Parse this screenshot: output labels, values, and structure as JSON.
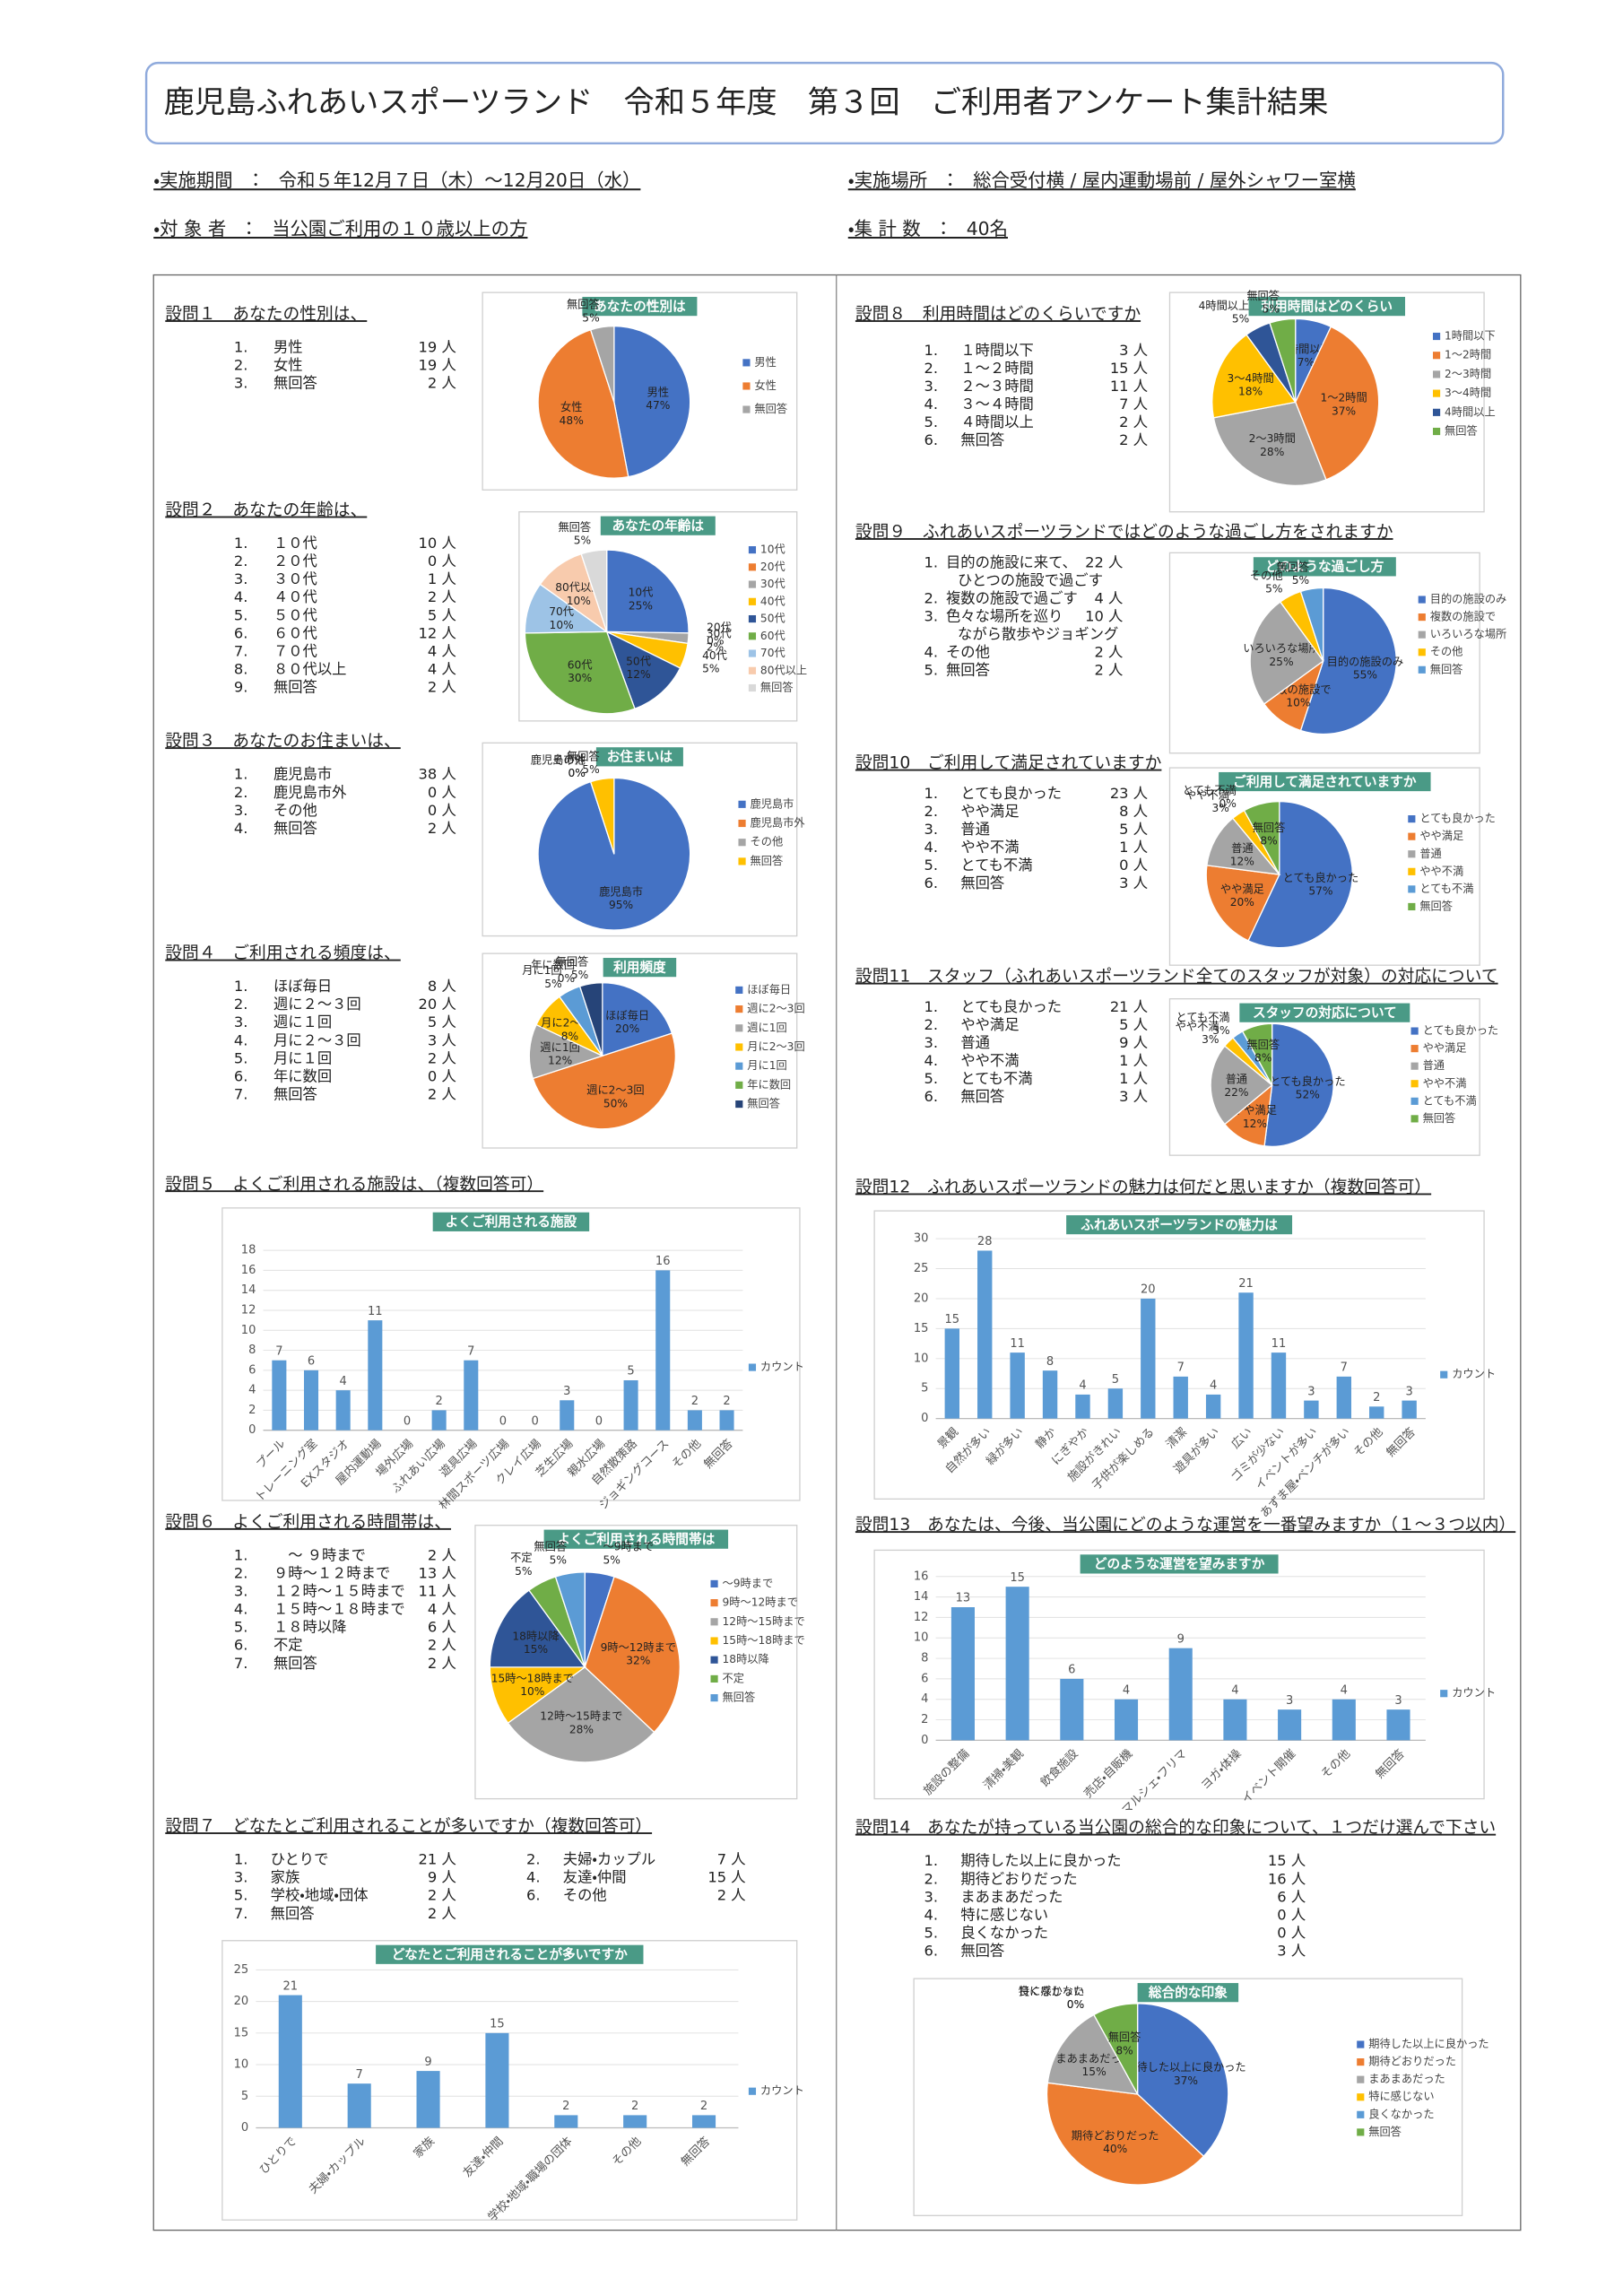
{
  "header": {
    "title": "鹿児島ふれあいスポーツランド　令和５年度　第３回　ご利用者アンケート集計結果"
  },
  "info": [
    "・実施期間　：　令和５年12月７日（木）～12月20日（水）",
    "・実施場所　：　総合受付横 / 屋内運動場前 / 屋外シャワー室横",
    "・対 象 者　：　当公園ご利用の１０歳以上の方",
    "・集 計 数　：　40名"
  ],
  "questions": [
    {
      "title": "設問１　あなたの性別は、",
      "items": [
        {
          "no": "1.",
          "label": "男性",
          "count": "19 人"
        },
        {
          "no": "2.",
          "label": "女性",
          "count": "19 人"
        },
        {
          "no": "3.",
          "label": "無回答",
          "count": "2 人"
        }
      ],
      "chart": {
        "type": "pie",
        "title": "あなたの性別は",
        "categories": [
          "男性",
          "女性",
          "無回答"
        ],
        "values": [
          47,
          48,
          5
        ],
        "value_labels": [
          "47%",
          "48%",
          "5%"
        ],
        "colors": [
          "#4472c4",
          "#ed7d31",
          "#a5a5a5"
        ]
      }
    },
    {
      "title": "設問２　あなたの年齢は、",
      "items": [
        {
          "no": "1.",
          "label": "１０代",
          "count": "10 人"
        },
        {
          "no": "2.",
          "label": "２０代",
          "count": "0 人"
        },
        {
          "no": "3.",
          "label": "３０代",
          "count": "1 人"
        },
        {
          "no": "4.",
          "label": "４０代",
          "count": "2 人"
        },
        {
          "no": "5.",
          "label": "５０代",
          "count": "5 人"
        },
        {
          "no": "6.",
          "label": "６０代",
          "count": "12 人"
        },
        {
          "no": "7.",
          "label": "７０代",
          "count": "4 人"
        },
        {
          "no": "8.",
          "label": "８０代以上",
          "count": "4 人"
        },
        {
          "no": "9.",
          "label": "無回答",
          "count": "2 人"
        }
      ],
      "chart": {
        "type": "pie",
        "title": "あなたの年齢は",
        "categories": [
          "10代",
          "20代",
          "30代",
          "40代",
          "50代",
          "60代",
          "70代",
          "80代以上",
          "無回答"
        ],
        "values": [
          25,
          0,
          2,
          5,
          12,
          30,
          10,
          10,
          5
        ],
        "value_labels": [
          "25%",
          "0%",
          "2%",
          "5%",
          "12%",
          "30%",
          "10%",
          "10%",
          "5%"
        ],
        "colors": [
          "#4472c4",
          "#ed7d31",
          "#a5a5a5",
          "#ffc000",
          "#2f5597",
          "#70ad47",
          "#9dc3e6",
          "#f8cbad",
          "#d9d9d9"
        ]
      }
    },
    {
      "title": "設問３　あなたのお住まいは、",
      "items": [
        {
          "no": "1.",
          "label": "鹿児島市",
          "count": "38 人"
        },
        {
          "no": "2.",
          "label": "鹿児島市外",
          "count": "0 人"
        },
        {
          "no": "3.",
          "label": "その他",
          "count": "0 人"
        },
        {
          "no": "4.",
          "label": "無回答",
          "count": "2 人"
        }
      ],
      "chart": {
        "type": "pie",
        "title": "お住まいは",
        "categories": [
          "鹿児島市",
          "鹿児島市外",
          "その他",
          "無回答"
        ],
        "values": [
          95,
          0,
          0,
          5
        ],
        "value_labels": [
          "95%",
          "0%",
          "0%",
          "5%"
        ],
        "colors": [
          "#4472c4",
          "#ed7d31",
          "#a5a5a5",
          "#ffc000"
        ]
      }
    },
    {
      "title": "設問４　ご利用される頻度は、",
      "items": [
        {
          "no": "1.",
          "label": "ほぼ毎日",
          "count": "8 人"
        },
        {
          "no": "2.",
          "label": "週に２～３回",
          "count": "20 人"
        },
        {
          "no": "3.",
          "label": "週に１回",
          "count": "5 人"
        },
        {
          "no": "4.",
          "label": "月に２～３回",
          "count": "3 人"
        },
        {
          "no": "5.",
          "label": "月に１回",
          "count": "2 人"
        },
        {
          "no": "6.",
          "label": "年に数回",
          "count": "0 人"
        },
        {
          "no": "7.",
          "label": "無回答",
          "count": "2 人"
        }
      ],
      "chart": {
        "type": "pie",
        "title": "利用頻度",
        "categories": [
          "ほぼ毎日",
          "週に2～3回",
          "週に1回",
          "月に2～3回",
          "月に1回",
          "年に数回",
          "無回答"
        ],
        "values": [
          20,
          50,
          12,
          8,
          5,
          0,
          5
        ],
        "value_labels": [
          "20%",
          "50%",
          "12%",
          "8%",
          "5%",
          "0%",
          "5%"
        ],
        "colors": [
          "#4472c4",
          "#ed7d31",
          "#a5a5a5",
          "#ffc000",
          "#5b9bd5",
          "#70ad47",
          "#264478"
        ]
      }
    },
    {
      "title": "設問５　よくご利用される施設は、（複数回答可）",
      "items": [],
      "chart": {
        "type": "bar",
        "title": "よくご利用される施設",
        "categories": [
          "プール",
          "トレーニング室",
          "EXスタジオ",
          "屋内運動場",
          "場外広場",
          "ふれあい広場",
          "遊具広場",
          "林間スポーツ広場",
          "クレイ広場",
          "芝生広場",
          "親水広場",
          "自然散策路",
          "ジョギングコース",
          "その他",
          "無回答"
        ],
        "values": [
          7,
          6,
          4,
          11,
          0,
          2,
          7,
          0,
          0,
          3,
          0,
          5,
          16,
          2,
          2
        ],
        "color": "#5b9bd5",
        "legend": "カウント",
        "ylim": [
          0,
          18
        ],
        "yticks": [
          0,
          2,
          4,
          6,
          8,
          10,
          12,
          14,
          16,
          18
        ]
      }
    },
    {
      "title": "設問６　よくご利用される時間帯は、",
      "items": [
        {
          "no": "1.",
          "label": "　～ ９時まで",
          "count": "2 人"
        },
        {
          "no": "2.",
          "label": "９時～１２時まで",
          "count": "13 人"
        },
        {
          "no": "3.",
          "label": "１２時～１５時まで",
          "count": "11 人"
        },
        {
          "no": "4.",
          "label": "１５時～１８時まで",
          "count": "4 人"
        },
        {
          "no": "5.",
          "label": "１８時以降",
          "count": "6 人"
        },
        {
          "no": "6.",
          "label": "不定",
          "count": "2 人"
        },
        {
          "no": "7.",
          "label": "無回答",
          "count": "2 人"
        }
      ],
      "chart": {
        "type": "pie",
        "title": "よくご利用される時間帯は",
        "categories": [
          "～9時まで",
          "9時～12時まで",
          "12時～15時まで",
          "15時～18時まで",
          "18時以降",
          "不定",
          "無回答"
        ],
        "values": [
          5,
          32,
          28,
          10,
          15,
          5,
          5
        ],
        "value_labels": [
          "5%",
          "32%",
          "28%",
          "10%",
          "15%",
          "5%",
          "5%"
        ],
        "colors": [
          "#4472c4",
          "#ed7d31",
          "#a5a5a5",
          "#ffc000",
          "#2f5597",
          "#70ad47",
          "#5b9bd5"
        ]
      }
    },
    {
      "title": "設問７　どなたとご利用されることが多いですか（複数回答可）",
      "items": [
        {
          "no": "1.",
          "label": "ひとりで",
          "count": "21 人"
        },
        {
          "no": "2.",
          "label": "夫婦・カップル",
          "count": "7 人"
        },
        {
          "no": "3.",
          "label": "家族",
          "count": "9 人"
        },
        {
          "no": "4.",
          "label": "友達・仲間",
          "count": "15 人"
        },
        {
          "no": "5.",
          "label": "学校・地域・団体",
          "count": "2 人"
        },
        {
          "no": "6.",
          "label": "その他",
          "count": "2 人"
        },
        {
          "no": "7.",
          "label": "無回答",
          "count": "2 人"
        }
      ],
      "chart": {
        "type": "bar",
        "title": "どなたとご利用されることが多いですか",
        "categories": [
          "ひとりで",
          "夫婦・カップル",
          "家族",
          "友達・仲間",
          "学校・地域・職場の団体",
          "その他",
          "無回答"
        ],
        "values": [
          21,
          7,
          9,
          15,
          2,
          2,
          2
        ],
        "color": "#5b9bd5",
        "legend": "カウント",
        "ylim": [
          0,
          25
        ],
        "yticks": [
          0,
          5,
          10,
          15,
          20,
          25
        ]
      }
    },
    {
      "title": "設問８　利用時間はどのくらいですか",
      "items": [
        {
          "no": "1.",
          "label": "１時間以下",
          "count": "3 人"
        },
        {
          "no": "2.",
          "label": "１～２時間",
          "count": "15 人"
        },
        {
          "no": "3.",
          "label": "２～３時間",
          "count": "11 人"
        },
        {
          "no": "4.",
          "label": "３～４時間",
          "count": "7 人"
        },
        {
          "no": "5.",
          "label": "４時間以上",
          "count": "2 人"
        },
        {
          "no": "6.",
          "label": "無回答",
          "count": "2 人"
        }
      ],
      "chart": {
        "type": "pie",
        "title": "利用時間はどのくらい",
        "categories": [
          "1時間以下",
          "1～2時間",
          "2～3時間",
          "3～4時間",
          "4時間以上",
          "無回答"
        ],
        "values": [
          7,
          37,
          28,
          18,
          5,
          5
        ],
        "value_labels": [
          "7%",
          "37%",
          "28%",
          "18%",
          "5%",
          "5%"
        ],
        "colors": [
          "#4472c4",
          "#ed7d31",
          "#a5a5a5",
          "#ffc000",
          "#2f5597",
          "#70ad47"
        ]
      }
    },
    {
      "title": "設問９　ふれあいスポーツランドではどのような過ごし方をされますか",
      "items": [
        {
          "no": "1.",
          "label": [
            "目的の施設に来て、",
            "ひとつの施設で過ごす"
          ],
          "count": "22 人"
        },
        {
          "no": "2.",
          "label": [
            "複数の施設で過ごす"
          ],
          "count": "4 人"
        },
        {
          "no": "3.",
          "label": [
            "色々な場所を巡り",
            "ながら散歩やジョギング"
          ],
          "count": "10 人"
        },
        {
          "no": "4.",
          "label": [
            "その他"
          ],
          "count": "2 人"
        },
        {
          "no": "5.",
          "label": [
            "無回答"
          ],
          "count": "2 人"
        }
      ],
      "chart": {
        "type": "pie",
        "title": "どのような過ごし方",
        "categories": [
          "目的の施設のみ",
          "複数の施設で",
          "いろいろな場所",
          "その他",
          "無回答"
        ],
        "values": [
          55,
          10,
          25,
          5,
          5
        ],
        "value_labels": [
          "55%",
          "10%",
          "25%",
          "5%",
          "5%"
        ],
        "colors": [
          "#4472c4",
          "#ed7d31",
          "#a5a5a5",
          "#ffc000",
          "#5b9bd5"
        ]
      }
    },
    {
      "title": "設問10　ご利用して満足されていますか",
      "items": [
        {
          "no": "1.",
          "label": "とても良かった",
          "count": "23 人"
        },
        {
          "no": "2.",
          "label": "やや満足",
          "count": "8 人"
        },
        {
          "no": "3.",
          "label": "普通",
          "count": "5 人"
        },
        {
          "no": "4.",
          "label": "やや不満",
          "count": "1 人"
        },
        {
          "no": "5.",
          "label": "とても不満",
          "count": "0 人"
        },
        {
          "no": "6.",
          "label": "無回答",
          "count": "3 人"
        }
      ],
      "chart": {
        "type": "pie",
        "title": "ご利用して満足されていますか",
        "categories": [
          "とても良かった",
          "やや満足",
          "普通",
          "やや不満",
          "とても不満",
          "無回答"
        ],
        "values": [
          57,
          20,
          12,
          3,
          0,
          8
        ],
        "value_labels": [
          "57%",
          "20%",
          "12%",
          "3%",
          "0%",
          "8%"
        ],
        "colors": [
          "#4472c4",
          "#ed7d31",
          "#a5a5a5",
          "#ffc000",
          "#5b9bd5",
          "#70ad47"
        ]
      }
    },
    {
      "title": "設問11　スタッフ（ふれあいスポーツランド全てのスタッフが対象）の対応について",
      "items": [
        {
          "no": "1.",
          "label": "とても良かった",
          "count": "21 人"
        },
        {
          "no": "2.",
          "label": "やや満足",
          "count": "5 人"
        },
        {
          "no": "3.",
          "label": "普通",
          "count": "9 人"
        },
        {
          "no": "4.",
          "label": "やや不満",
          "count": "1 人"
        },
        {
          "no": "5.",
          "label": "とても不満",
          "count": "1 人"
        },
        {
          "no": "6.",
          "label": "無回答",
          "count": "3 人"
        }
      ],
      "chart": {
        "type": "pie",
        "title": "スタッフの対応について",
        "categories": [
          "とても良かった",
          "やや満足",
          "普通",
          "やや不満",
          "とても不満",
          "無回答"
        ],
        "values": [
          52,
          12,
          22,
          3,
          3,
          8
        ],
        "value_labels": [
          "52%",
          "12%",
          "22%",
          "3%",
          "3%",
          "8%"
        ],
        "colors": [
          "#4472c4",
          "#ed7d31",
          "#a5a5a5",
          "#ffc000",
          "#5b9bd5",
          "#70ad47"
        ]
      }
    },
    {
      "title": "設問12　ふれあいスポーツランドの魅力は何だと思いますか（複数回答可）",
      "items": [],
      "chart": {
        "type": "bar",
        "title": "ふれあいスポーツランドの魅力は",
        "categories": [
          "景観",
          "自然が多い",
          "緑が多い",
          "静か",
          "にぎやか",
          "施設がきれい",
          "子供が楽しめる",
          "清潔",
          "遊具が多い",
          "広い",
          "ゴミが少ない",
          "イベントが多い",
          "あずま屋・ベンチが多い",
          "その他",
          "無回答"
        ],
        "values": [
          15,
          28,
          11,
          8,
          4,
          5,
          20,
          7,
          4,
          21,
          11,
          3,
          7,
          2,
          3
        ],
        "color": "#5b9bd5",
        "legend": "カウント",
        "ylim": [
          0,
          30
        ],
        "yticks": [
          0,
          5,
          10,
          15,
          20,
          25,
          30
        ]
      }
    },
    {
      "title": "設問13　あなたは、今後、当公園にどのような運営を一番望みますか（１～３つ以内）",
      "items": [],
      "chart": {
        "type": "bar",
        "title": "どのような運営を望みますか",
        "categories": [
          "施設の整備",
          "清掃・美観",
          "飲食施設",
          "売店・自販機",
          "マルシェ・フリマ",
          "ヨガ・体操",
          "イベント開催",
          "その他",
          "無回答"
        ],
        "values": [
          13,
          15,
          6,
          4,
          9,
          4,
          3,
          4,
          3
        ],
        "color": "#5b9bd5",
        "legend": "カウント",
        "ylim": [
          0,
          16
        ],
        "yticks": [
          0,
          2,
          4,
          6,
          8,
          10,
          12,
          14,
          16
        ]
      }
    },
    {
      "title": "設問14　あなたが持っている当公園の総合的な印象について、１つだけ選んで下さい",
      "items": [
        {
          "no": "1.",
          "label": "期待した以上に良かった",
          "count": "15 人"
        },
        {
          "no": "2.",
          "label": "期待どおりだった",
          "count": "16 人"
        },
        {
          "no": "3.",
          "label": "まあまあだった",
          "count": "6 人"
        },
        {
          "no": "4.",
          "label": "特に感じない",
          "count": "0 人"
        },
        {
          "no": "5.",
          "label": "良くなかった",
          "count": "0 人"
        },
        {
          "no": "6.",
          "label": "無回答",
          "count": "3 人"
        }
      ],
      "chart": {
        "type": "pie",
        "title": "総合的な印象",
        "categories": [
          "期待した以上に良かった",
          "期待どおりだった",
          "まあまあだった",
          "特に感じない",
          "良くなかった",
          "無回答"
        ],
        "values": [
          37,
          40,
          15,
          0,
          0,
          8
        ],
        "value_labels": [
          "37%",
          "40%",
          "15%",
          "0%",
          "0%",
          "8%"
        ],
        "colors": [
          "#4472c4",
          "#ed7d31",
          "#a5a5a5",
          "#ffc000",
          "#5b9bd5",
          "#70ad47"
        ]
      }
    }
  ]
}
